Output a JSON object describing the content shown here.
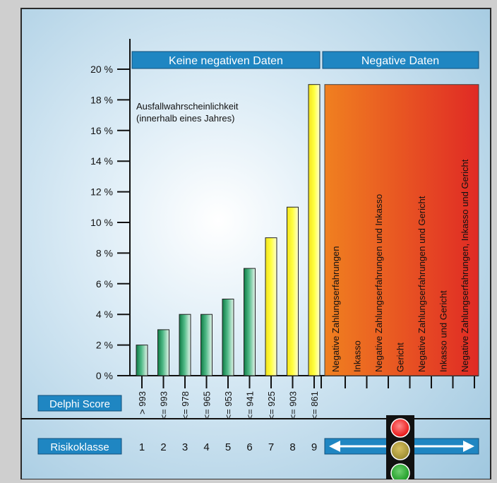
{
  "header": {
    "left_label": "Keine negativen Daten",
    "right_label": "Negative Daten"
  },
  "annotation": {
    "line1": "Ausfallwahrscheinlichkeit",
    "line2": "(innerhalb eines Jahres)"
  },
  "row_labels": {
    "score": "Delphi Score",
    "risk": "Risikoklasse"
  },
  "chart_data": {
    "type": "bar",
    "title": "",
    "xlabel": "",
    "ylabel": "",
    "ylim": [
      0,
      20
    ],
    "y_ticks": [
      "0 %",
      "2 %",
      "4 %",
      "6 %",
      "8 %",
      "10 %",
      "12 %",
      "14 %",
      "16 %",
      "18 %",
      "20 %"
    ],
    "categories": [
      "> 993",
      "<= 993",
      "<= 978",
      "<= 965",
      "<= 953",
      "<= 941",
      "<= 925",
      "<= 903",
      "<= 861"
    ],
    "values": [
      2,
      3,
      4,
      4,
      5,
      7,
      9,
      11,
      19
    ],
    "bar_colors": [
      "green",
      "green",
      "green",
      "green",
      "green",
      "green",
      "yellow",
      "yellow",
      "yellow"
    ],
    "risk_classes": [
      "1",
      "2",
      "3",
      "4",
      "5",
      "6",
      "7",
      "8",
      "9"
    ],
    "negative_categories": [
      "Negative Zahlungserfahrungen",
      "Inkasso",
      "Negative Zahlungserfahrungen und Inkasso",
      "Gericht",
      "Negative Zahlungserfahrungen und Gericht",
      "Inkasso und Gericht",
      "Negative Zahlungserfahrungen, Inkasso und Gericht"
    ],
    "negative_block_value": 19
  },
  "colors": {
    "header_blue": "#1f86c2",
    "green_bar": "#2e9a62",
    "yellow_bar": "#ffff33",
    "orange": "#f07f1a",
    "red": "#e02a25"
  }
}
